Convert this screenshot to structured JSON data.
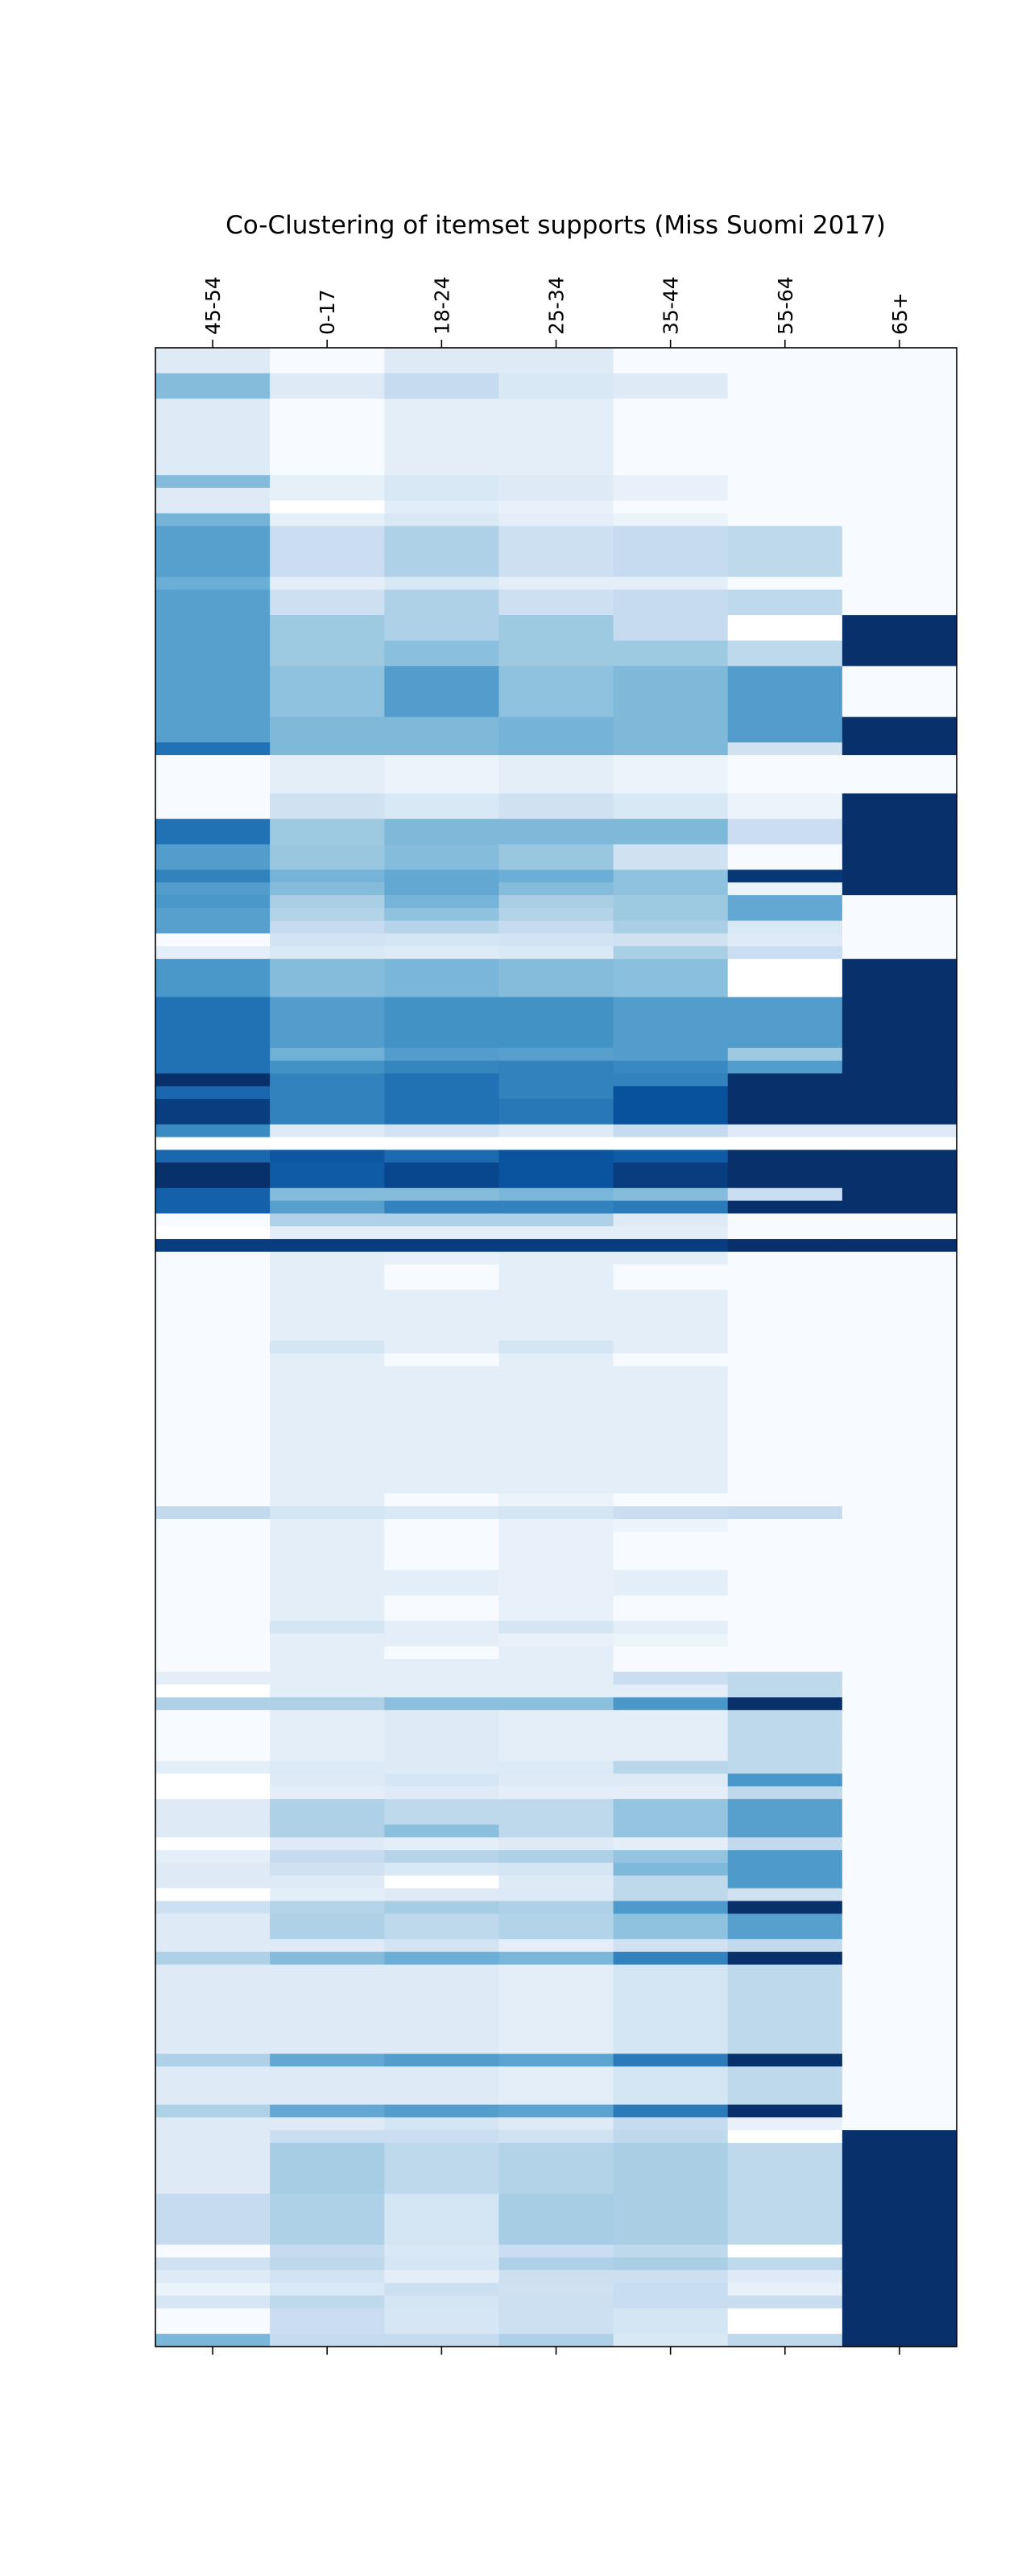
{
  "chart_data": {
    "type": "heatmap",
    "title": "Co-Clustering of itemset supports (Miss Suomi 2017)",
    "xlabel": "",
    "ylabel": "",
    "columns": [
      "45-54",
      "0-17",
      "18-24",
      "25-34",
      "35-44",
      "55-64",
      "65+"
    ],
    "colormap": "Blues",
    "color_range": [
      0,
      8
    ],
    "row_unit": "relative row height",
    "rows": [
      {
        "h": 2,
        "v": [
          1,
          0,
          1,
          1,
          0,
          0,
          0
        ]
      },
      {
        "h": 2,
        "v": [
          3.5,
          1,
          2,
          1.2,
          1,
          0,
          0
        ]
      },
      {
        "h": 6,
        "v": [
          1,
          0,
          0.8,
          0.8,
          0,
          0,
          0
        ]
      },
      {
        "h": 1,
        "v": [
          3.5,
          0.7,
          1.2,
          1,
          0.6,
          0,
          0
        ]
      },
      {
        "h": 1,
        "v": [
          1,
          0.7,
          1.2,
          1,
          0.6,
          0,
          0
        ]
      },
      {
        "h": 1,
        "v": [
          1,
          -0.2,
          0.9,
          0.6,
          0,
          0,
          0
        ]
      },
      {
        "h": 1,
        "v": [
          3.8,
          0.7,
          1.2,
          0.8,
          0.5,
          0,
          0
        ]
      },
      {
        "h": 4,
        "v": [
          4.5,
          1.8,
          2.6,
          1.7,
          2,
          2.2,
          0
        ]
      },
      {
        "h": 1,
        "v": [
          4,
          0.8,
          1.2,
          0.8,
          0.8,
          0,
          0
        ]
      },
      {
        "h": 2,
        "v": [
          4.5,
          1.7,
          2.6,
          1.7,
          2,
          2.2,
          0
        ]
      },
      {
        "h": 2,
        "v": [
          4.5,
          3,
          2.6,
          3,
          2,
          -0.2,
          8
        ]
      },
      {
        "h": 2,
        "v": [
          4.5,
          3,
          3.4,
          3,
          3,
          2.2,
          8
        ]
      },
      {
        "h": 4,
        "v": [
          4.5,
          3.3,
          4.6,
          3.3,
          3.6,
          4.6,
          0
        ]
      },
      {
        "h": 1,
        "v": [
          4.5,
          3.6,
          3.6,
          3.8,
          3.6,
          4.6,
          8
        ]
      },
      {
        "h": 1,
        "v": [
          4.5,
          3.6,
          3.6,
          3.8,
          3.6,
          4.6,
          8
        ]
      },
      {
        "h": 1,
        "v": [
          6,
          3.6,
          3.6,
          3.8,
          3.6,
          1.6,
          8
        ]
      },
      {
        "h": 3,
        "v": [
          0,
          0.8,
          0.5,
          0.8,
          0.5,
          0,
          0
        ]
      },
      {
        "h": 2,
        "v": [
          0,
          1.6,
          1.2,
          1.6,
          1.2,
          0.5,
          8
        ]
      },
      {
        "h": 2,
        "v": [
          6,
          3,
          3.6,
          3.6,
          3.6,
          1.8,
          8
        ]
      },
      {
        "h": 2,
        "v": [
          4.6,
          3.1,
          3.5,
          3.1,
          1.6,
          0,
          8
        ]
      },
      {
        "h": 1,
        "v": [
          5.5,
          3.8,
          4.2,
          4,
          3.3,
          7.8,
          8
        ]
      },
      {
        "h": 1,
        "v": [
          4.6,
          3.5,
          4.2,
          3.5,
          3.3,
          0.5,
          8
        ]
      },
      {
        "h": 1,
        "v": [
          4.8,
          2.7,
          3.8,
          2.7,
          3,
          4.2,
          0
        ]
      },
      {
        "h": 1,
        "v": [
          4.5,
          2.5,
          3.3,
          2.5,
          3,
          4.2,
          0
        ]
      },
      {
        "h": 1,
        "v": [
          4.5,
          2,
          2.4,
          2,
          2.7,
          1.2,
          0
        ]
      },
      {
        "h": 1,
        "v": [
          0,
          1.5,
          1.4,
          1.5,
          1.6,
          1,
          0
        ]
      },
      {
        "h": 1,
        "v": [
          0.8,
          1.2,
          1,
          1.2,
          2.7,
          1.8,
          0
        ]
      },
      {
        "h": 3,
        "v": [
          4.8,
          3.5,
          3.7,
          3.5,
          3.4,
          -0.2,
          8
        ]
      },
      {
        "h": 4,
        "v": [
          6,
          4.6,
          5,
          5,
          4.6,
          4.6,
          8
        ]
      },
      {
        "h": 1,
        "v": [
          6,
          3.9,
          4.6,
          4.5,
          4.6,
          3,
          8
        ]
      },
      {
        "h": 1,
        "v": [
          6,
          5,
          5.4,
          5.5,
          5.3,
          4.6,
          8
        ]
      },
      {
        "h": 1,
        "v": [
          8,
          5.5,
          6,
          5.5,
          5.5,
          8,
          8
        ]
      },
      {
        "h": 1,
        "v": [
          6.3,
          5.5,
          6,
          5.5,
          7,
          8,
          8
        ]
      },
      {
        "h": 2,
        "v": [
          7.6,
          5.5,
          6,
          5.8,
          7,
          8,
          8
        ]
      },
      {
        "h": 1,
        "v": [
          5.2,
          1,
          1.5,
          1,
          2,
          1,
          1
        ]
      },
      {
        "h": 1,
        "v": [
          -0.2,
          -0.2,
          -0.2,
          -0.2,
          -0.2,
          -0.2,
          -0.2
        ]
      },
      {
        "h": 1,
        "v": [
          6.3,
          6.8,
          6.2,
          6.9,
          6.7,
          8,
          8
        ]
      },
      {
        "h": 2,
        "v": [
          8,
          6.7,
          7.3,
          6.9,
          7.6,
          8,
          8
        ]
      },
      {
        "h": 1,
        "v": [
          6.5,
          3.5,
          3.5,
          3.7,
          3.5,
          1.8,
          8
        ]
      },
      {
        "h": 1,
        "v": [
          6.5,
          4.5,
          5.5,
          5.5,
          5.7,
          8,
          8
        ]
      },
      {
        "h": 1,
        "v": [
          0,
          2.6,
          2.6,
          2.6,
          1,
          0,
          0
        ]
      },
      {
        "h": 1,
        "v": [
          -0.2,
          0.8,
          0.8,
          0.8,
          0.8,
          0,
          0
        ]
      },
      {
        "h": 1,
        "v": [
          7.6,
          7.6,
          7.6,
          7.6,
          7.6,
          8,
          8
        ]
      },
      {
        "h": 1,
        "v": [
          0,
          0.8,
          0.6,
          0.8,
          0.8,
          0,
          0
        ]
      },
      {
        "h": 2,
        "v": [
          0,
          0.8,
          0,
          0.8,
          0,
          0,
          0
        ]
      },
      {
        "h": 4,
        "v": [
          0,
          0.8,
          0.8,
          0.8,
          0.8,
          0,
          0
        ]
      },
      {
        "h": 1,
        "v": [
          0,
          1.4,
          0.8,
          1.4,
          0.8,
          0,
          0
        ]
      },
      {
        "h": 1,
        "v": [
          0,
          0.8,
          0,
          0.8,
          0,
          0,
          0
        ]
      },
      {
        "h": 10,
        "v": [
          0,
          0.8,
          0.8,
          0.8,
          0.8,
          0,
          0
        ]
      },
      {
        "h": 1,
        "v": [
          0,
          0.8,
          0,
          0.5,
          0,
          0,
          0
        ]
      },
      {
        "h": 1,
        "v": [
          2.1,
          1.4,
          1.2,
          1.4,
          1.8,
          2,
          0
        ]
      },
      {
        "h": 1,
        "v": [
          0,
          0.8,
          0,
          0.6,
          0.5,
          0,
          0
        ]
      },
      {
        "h": 3,
        "v": [
          0,
          0.8,
          0,
          0.6,
          0,
          0,
          0
        ]
      },
      {
        "h": 2,
        "v": [
          0,
          0.8,
          0.8,
          0.6,
          0.8,
          0,
          0
        ]
      },
      {
        "h": 2,
        "v": [
          0,
          0.8,
          0,
          0.6,
          0,
          0,
          0
        ]
      },
      {
        "h": 1,
        "v": [
          0,
          1.4,
          0.8,
          1.4,
          0.8,
          0,
          0
        ]
      },
      {
        "h": 1,
        "v": [
          0,
          0.8,
          0.8,
          0.6,
          0.5,
          0,
          0
        ]
      },
      {
        "h": 1,
        "v": [
          0,
          0.8,
          0,
          0.8,
          0,
          0,
          0
        ]
      },
      {
        "h": 1,
        "v": [
          0,
          0.8,
          0.8,
          0.8,
          0,
          0,
          0
        ]
      },
      {
        "h": 1,
        "v": [
          0.8,
          0.8,
          0.8,
          0.8,
          1.8,
          2.2,
          0
        ]
      },
      {
        "h": 1,
        "v": [
          -0.2,
          0.8,
          0.8,
          0.8,
          0.8,
          2.2,
          0
        ]
      },
      {
        "h": 1,
        "v": [
          2.6,
          2.6,
          3.4,
          3.4,
          4.8,
          8,
          0
        ]
      },
      {
        "h": 2,
        "v": [
          0,
          0.8,
          1,
          0.8,
          0.8,
          2.2,
          0
        ]
      },
      {
        "h": 2,
        "v": [
          0,
          0.8,
          1,
          0.8,
          0.8,
          2.2,
          0
        ]
      },
      {
        "h": 1,
        "v": [
          0.8,
          1.1,
          1,
          1.1,
          2.3,
          2.2,
          0
        ]
      },
      {
        "h": 1,
        "v": [
          -0.2,
          1,
          1.3,
          1,
          1,
          4.8,
          0
        ]
      },
      {
        "h": 1,
        "v": [
          -0.2,
          0.8,
          1,
          0.8,
          0.8,
          2.2,
          0
        ]
      },
      {
        "h": 2,
        "v": [
          1,
          2.6,
          2.2,
          2.2,
          3.2,
          4.5,
          0
        ]
      },
      {
        "h": 1,
        "v": [
          1,
          2.6,
          3.4,
          2.2,
          3.2,
          4.5,
          0
        ]
      },
      {
        "h": 1,
        "v": [
          -0.2,
          1,
          0.8,
          1,
          0.8,
          2.1,
          0
        ]
      },
      {
        "h": 1,
        "v": [
          0.8,
          2,
          2.4,
          2.6,
          3.2,
          4.7,
          0
        ]
      },
      {
        "h": 1,
        "v": [
          1,
          1.6,
          1.2,
          1.4,
          3.6,
          4.7,
          0
        ]
      },
      {
        "h": 1,
        "v": [
          1,
          1,
          -0.2,
          1,
          2.2,
          4.7,
          0
        ]
      },
      {
        "h": 1,
        "v": [
          -0.2,
          0.8,
          1,
          1.1,
          2.2,
          1.6,
          0
        ]
      },
      {
        "h": 1,
        "v": [
          1.7,
          2.5,
          2.8,
          2.6,
          4.7,
          8,
          0
        ]
      },
      {
        "h": 2,
        "v": [
          1,
          2.6,
          2.2,
          2.5,
          3.3,
          4.5,
          0
        ]
      },
      {
        "h": 1,
        "v": [
          1,
          1,
          1.5,
          0.8,
          1.6,
          2.1,
          0
        ]
      },
      {
        "h": 1,
        "v": [
          2.6,
          3.5,
          4,
          3.7,
          5.5,
          8,
          0
        ]
      },
      {
        "h": 7,
        "v": [
          1,
          1,
          1,
          0.8,
          1.4,
          2.2,
          0
        ]
      },
      {
        "h": 1,
        "v": [
          2.6,
          4.2,
          4.6,
          4.4,
          5.7,
          8,
          0
        ]
      },
      {
        "h": 3,
        "v": [
          1,
          1,
          1,
          0.8,
          1.4,
          2.2,
          0
        ]
      },
      {
        "h": 1,
        "v": [
          2.6,
          4.2,
          4.6,
          4.4,
          5.7,
          8,
          0
        ]
      },
      {
        "h": 1,
        "v": [
          1,
          1,
          1.4,
          1,
          2,
          0.6,
          0
        ]
      },
      {
        "h": 1,
        "v": [
          1,
          1.8,
          1.8,
          1.6,
          2.2,
          -0.2,
          8
        ]
      },
      {
        "h": 4,
        "v": [
          1,
          2.8,
          2.2,
          2.5,
          2.7,
          2.2,
          8
        ]
      },
      {
        "h": 4,
        "v": [
          2,
          2.6,
          1.4,
          2.8,
          2.7,
          2.2,
          8
        ]
      },
      {
        "h": 1,
        "v": [
          0,
          2,
          1.2,
          1.8,
          2.2,
          -0.2,
          8
        ]
      },
      {
        "h": 1,
        "v": [
          1.6,
          2.2,
          1.3,
          2.6,
          2.7,
          2.2,
          8
        ]
      },
      {
        "h": 1,
        "v": [
          1,
          1.5,
          0.8,
          1.7,
          1.7,
          1,
          8
        ]
      },
      {
        "h": 1,
        "v": [
          0.5,
          1.2,
          1.7,
          1.6,
          1.9,
          0.6,
          8
        ]
      },
      {
        "h": 1,
        "v": [
          1.3,
          2.2,
          1.4,
          1.7,
          1.9,
          1.9,
          8
        ]
      },
      {
        "h": 2,
        "v": [
          0,
          1.8,
          1.3,
          1.7,
          1.4,
          -0.2,
          8
        ]
      },
      {
        "h": 1,
        "v": [
          3.7,
          2,
          2,
          2.6,
          1.2,
          2.2,
          8
        ]
      }
    ]
  }
}
